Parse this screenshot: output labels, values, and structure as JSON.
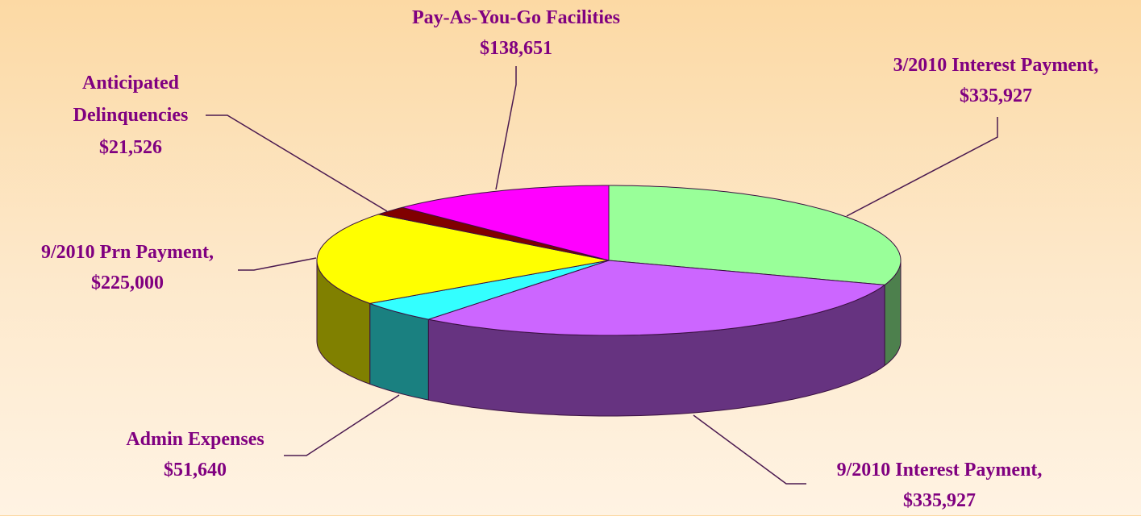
{
  "chart_data": {
    "type": "pie3d",
    "categories": [
      "3/2010 Interest Payment,",
      "9/2010 Interest Payment,",
      "Admin Expenses",
      "9/2010 Prn Payment,",
      "Anticipated Delinquencies",
      "Pay-As-You-Go Facilities"
    ],
    "values": [
      335927,
      335927,
      51640,
      225000,
      21526,
      138651
    ],
    "value_labels": [
      "$335,927",
      "$335,927",
      "$51,640",
      "$225,000",
      "$21,526",
      "$138,651"
    ],
    "colors": [
      "#99ff99",
      "#cc66ff",
      "#33ffff",
      "#ffff00",
      "#800000",
      "#ff00ff"
    ]
  }
}
